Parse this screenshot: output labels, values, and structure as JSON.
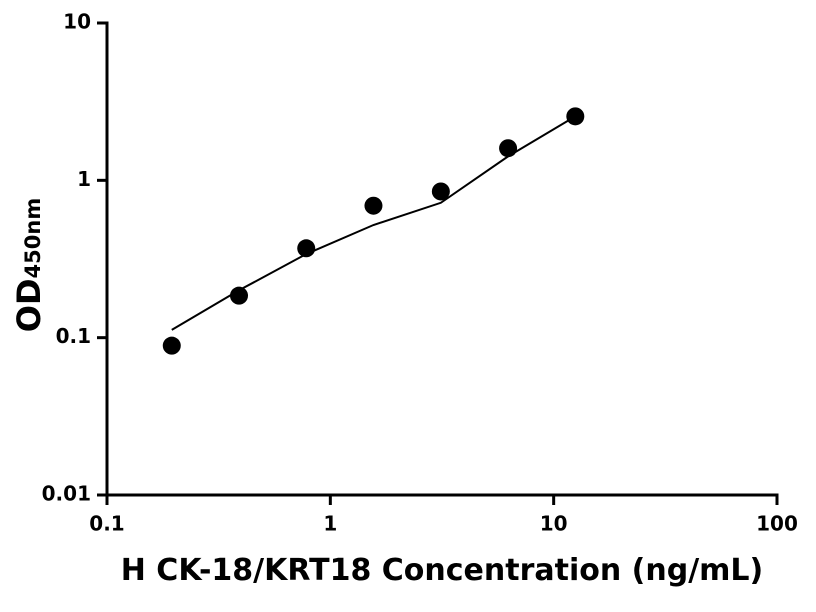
{
  "chart_data": {
    "type": "scatter",
    "x_label": "H CK-18/KRT18 Concentration (ng/mL)",
    "y_label": "OD",
    "y_label_sub": "450nm",
    "xscale": "log",
    "yscale": "log",
    "xlim": [
      0.1,
      100
    ],
    "xticks": [
      0.1,
      1,
      10,
      100
    ],
    "ylim": [
      0.01,
      10
    ],
    "yticks": [
      0.01,
      0.1,
      1,
      10
    ],
    "series": [
      {
        "type": "scatter",
        "color": "#000000",
        "x": [
          0.195,
          0.39,
          0.78,
          1.56,
          3.125,
          6.25,
          12.5
        ],
        "values": [
          0.089,
          0.185,
          0.37,
          0.69,
          0.85,
          1.6,
          2.55
        ]
      },
      {
        "type": "line",
        "color": "#000000",
        "x": [
          0.195,
          0.39,
          0.78,
          1.56,
          3.125,
          6.25,
          12.5
        ],
        "values": [
          0.112,
          0.2,
          0.34,
          0.52,
          0.72,
          1.42,
          2.55
        ]
      }
    ]
  }
}
